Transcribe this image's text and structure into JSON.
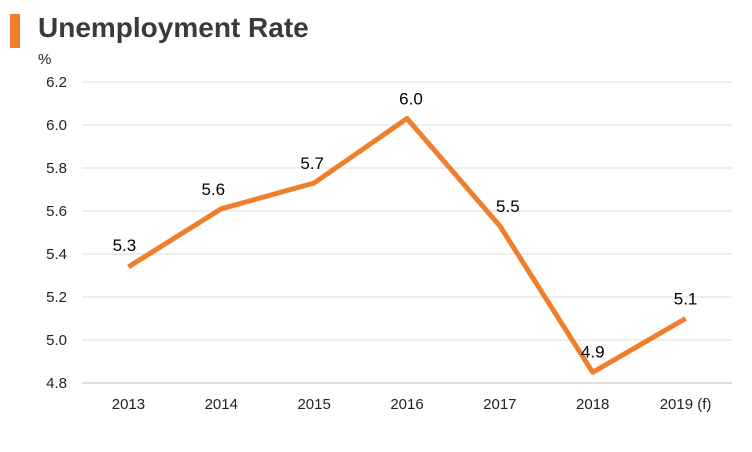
{
  "title": "Unemployment Rate",
  "accent_color": "#f07f2d",
  "chart_data": {
    "type": "line",
    "title": "Unemployment Rate",
    "ylabel": "%",
    "xlabel": "",
    "categories": [
      "2013",
      "2014",
      "2015",
      "2016",
      "2017",
      "2018",
      "2019 (f)"
    ],
    "values": [
      5.34,
      5.61,
      5.73,
      6.03,
      5.53,
      4.85,
      5.1
    ],
    "data_labels": [
      "5.3",
      "5.6",
      "5.7",
      "6.0",
      "5.5",
      "4.9",
      "5.1"
    ],
    "ylim": [
      4.8,
      6.2
    ],
    "yticks": [
      "4.8",
      "5.0",
      "5.2",
      "5.4",
      "5.6",
      "5.8",
      "6.0",
      "6.2"
    ],
    "grid": true,
    "line_color": "#f07f2d"
  }
}
